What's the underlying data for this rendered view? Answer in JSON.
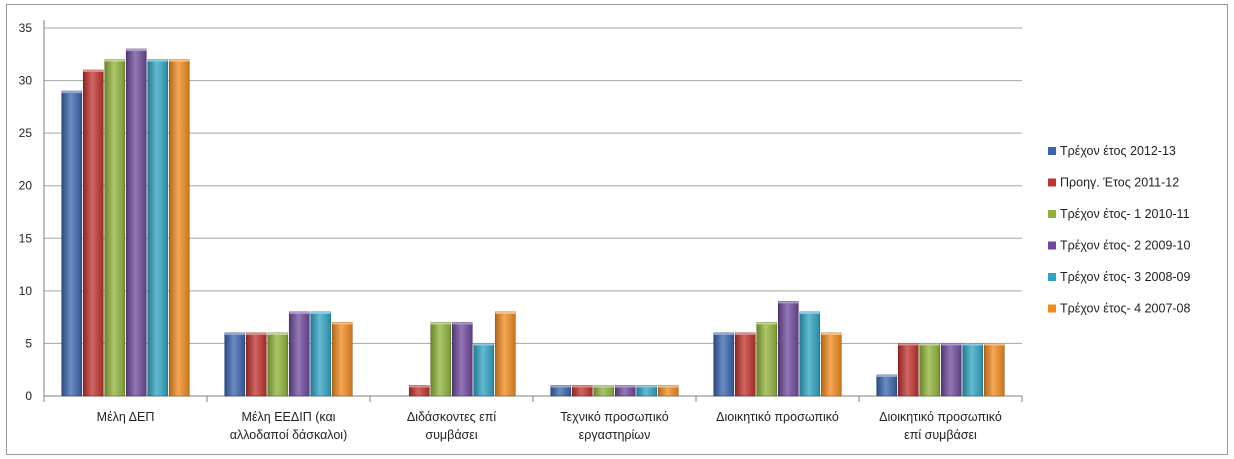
{
  "chart_data": {
    "type": "bar",
    "categories": [
      [
        "Μέλη ΔΕΠ"
      ],
      [
        "Μέλη ΕΕΔΙΠ (και",
        "αλλοδαποί δάσκαλοι)"
      ],
      [
        "Διδάσκοντες επί",
        "συμβάσει"
      ],
      [
        "Τεχνικό προσωπικό",
        "εργαστηρίων"
      ],
      [
        "Διοικητικό προσωπικό"
      ],
      [
        "Διοικητικό προσωπικό",
        "επί συμβάσει"
      ]
    ],
    "series": [
      {
        "name": "Τρέχον έτος 2012-13",
        "color": "#3a64ad",
        "values": [
          29,
          6,
          0,
          1,
          6,
          2
        ]
      },
      {
        "name": "Προηγ. Έτος 2011-12",
        "color": "#c0332e",
        "values": [
          31,
          6,
          1,
          1,
          6,
          5
        ]
      },
      {
        "name": "Τρέχον έτος- 1 2010-11",
        "color": "#8fb33a",
        "values": [
          32,
          6,
          7,
          1,
          7,
          5
        ]
      },
      {
        "name": "Τρέχον έτος- 2 2009-10",
        "color": "#6f4a9c",
        "values": [
          33,
          8,
          7,
          1,
          9,
          5
        ]
      },
      {
        "name": "Τρέχον έτος- 3 2008-09",
        "color": "#2fa3c2",
        "values": [
          32,
          8,
          5,
          1,
          8,
          5
        ]
      },
      {
        "name": "Τρέχον έτος- 4 2007-08",
        "color": "#f08a1e",
        "values": [
          32,
          7,
          8,
          1,
          6,
          5
        ]
      }
    ],
    "yticks": [
      "0",
      "5",
      "10",
      "15",
      "20",
      "25",
      "30",
      "35"
    ],
    "ylim": [
      0,
      35
    ],
    "grid": true,
    "legend_position": "right"
  }
}
